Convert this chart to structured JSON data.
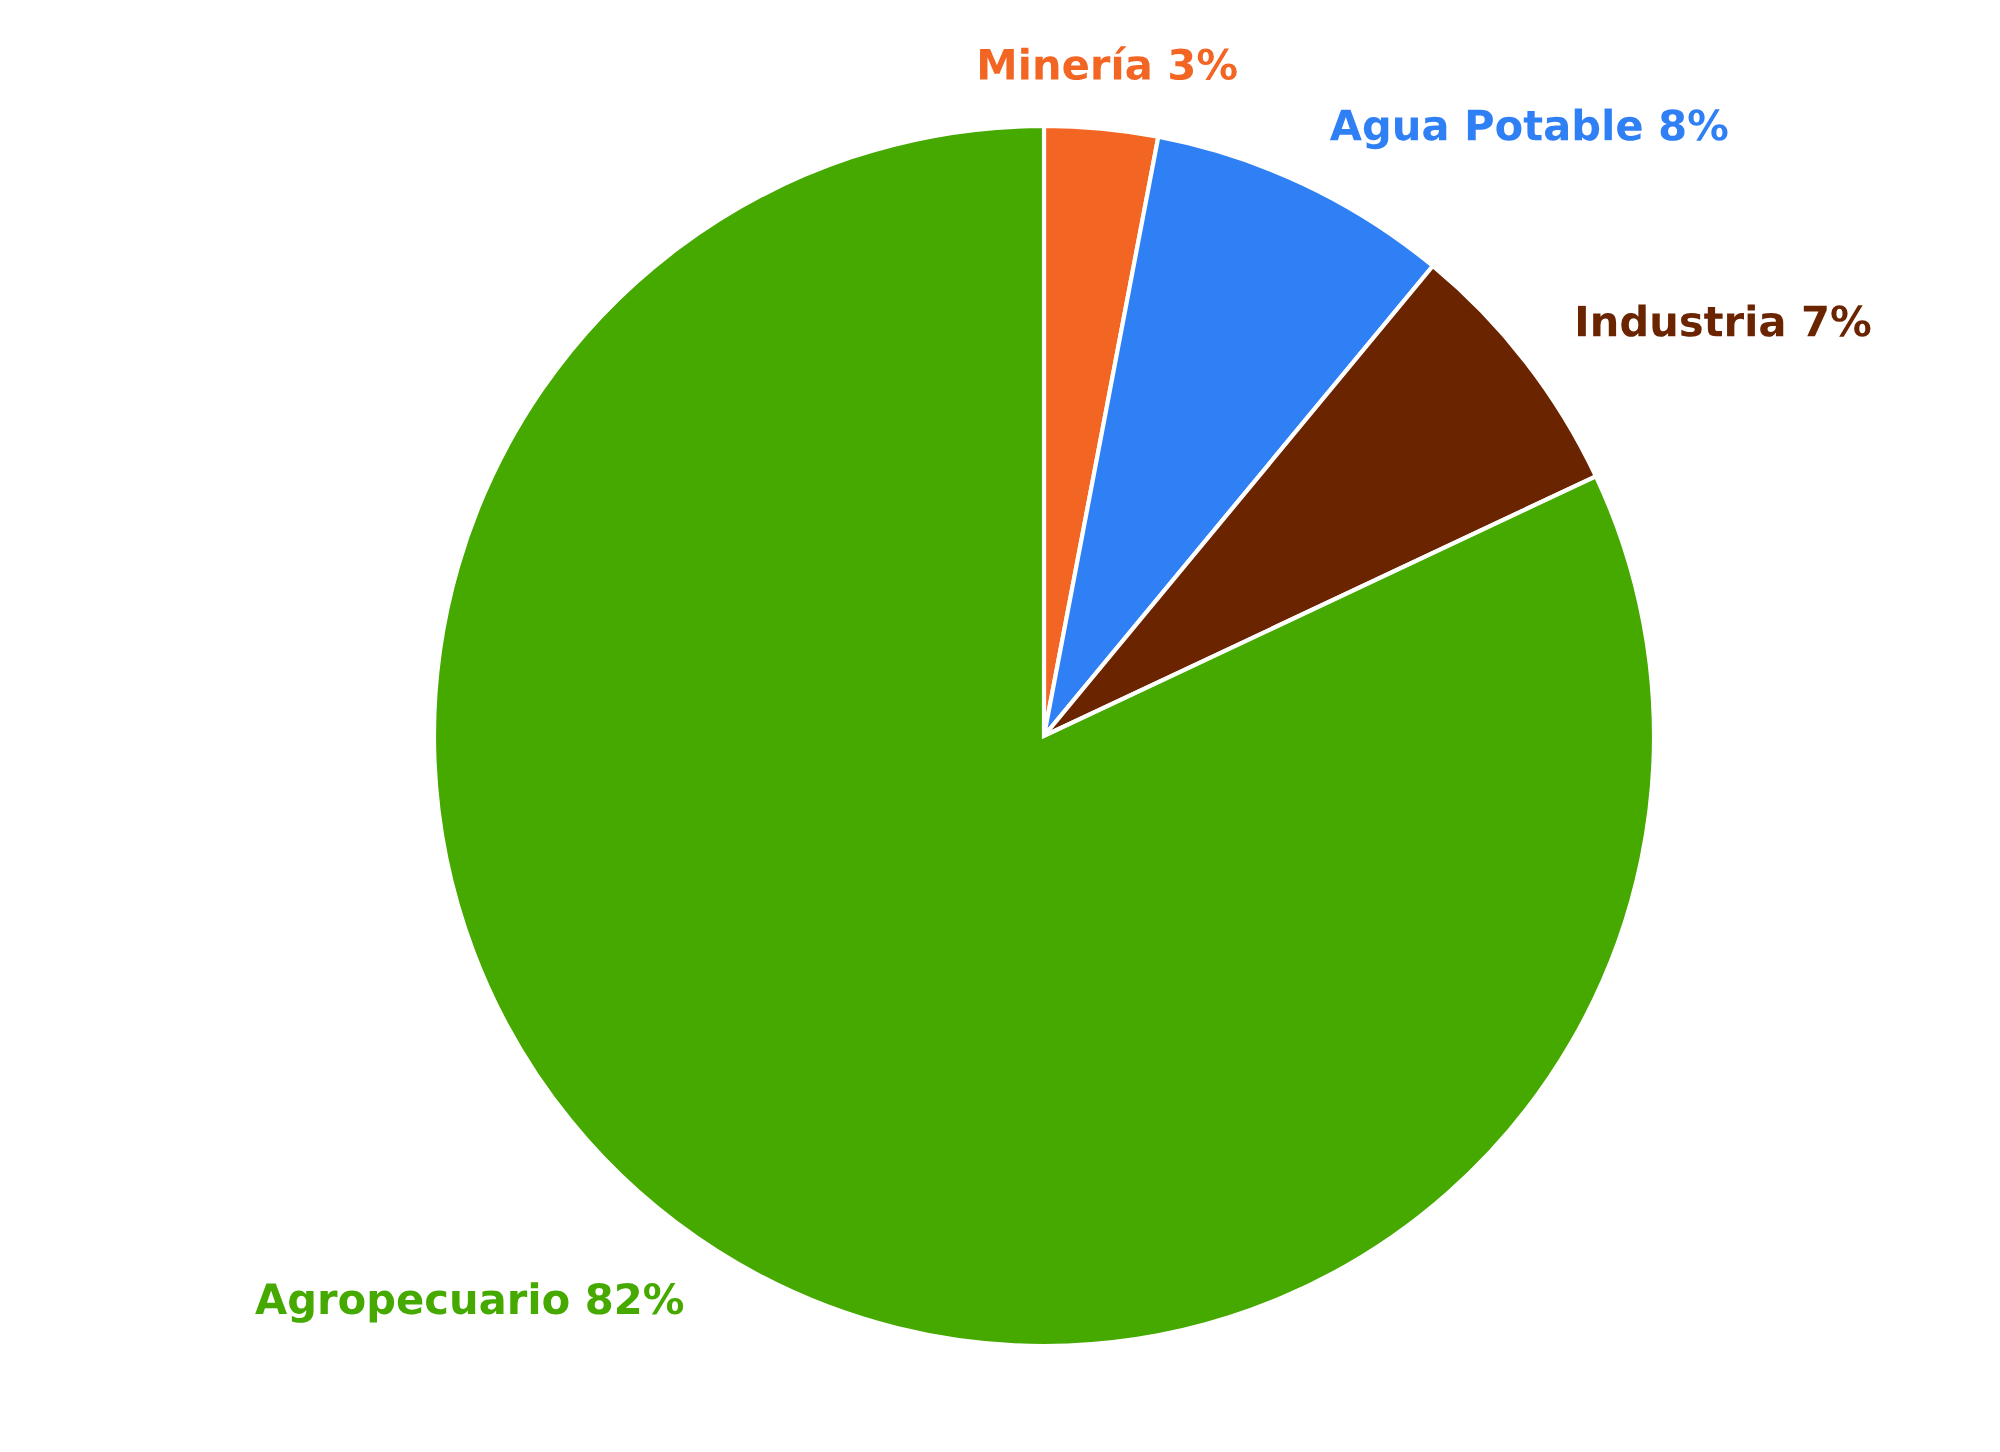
{
  "chart_data": {
    "type": "pie",
    "categories": [
      "Minería",
      "Agua Potable",
      "Industria",
      "Agropecuario"
    ],
    "values": [
      3,
      8,
      7,
      82
    ],
    "value_labels": [
      "3%",
      "8%",
      "7%",
      "82%"
    ],
    "colors": [
      "#f26522",
      "#2f7ff5",
      "#6b2400",
      "#45a900"
    ],
    "legend": false
  }
}
